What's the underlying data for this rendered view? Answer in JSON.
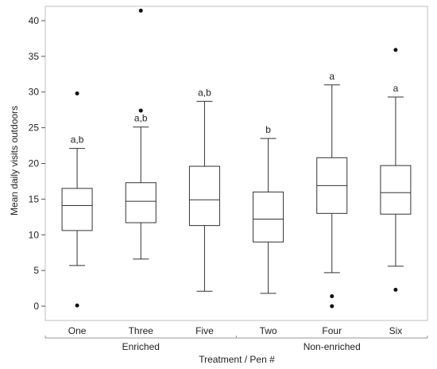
{
  "chart_data": {
    "type": "boxplot",
    "ylabel": "Mean daily visits outdoors",
    "xlabel": "Treatment / Pen #",
    "ylim": [
      -2,
      42
    ],
    "yticks": [
      0,
      5,
      10,
      15,
      20,
      25,
      30,
      35,
      40
    ],
    "grid": false,
    "categories": [
      "One",
      "Three",
      "Five",
      "Two",
      "Four",
      "Six"
    ],
    "groups": [
      {
        "label": "Enriched",
        "categories": [
          "One",
          "Three",
          "Five"
        ]
      },
      {
        "label": "Non-enriched",
        "categories": [
          "Two",
          "Four",
          "Six"
        ]
      }
    ],
    "boxes": [
      {
        "category": "One",
        "min": 5.7,
        "q1": 10.6,
        "median": 14.1,
        "q3": 16.5,
        "max": 22.1,
        "outliers": [
          29.8,
          0.1
        ],
        "letters": "a,b"
      },
      {
        "category": "Three",
        "min": 6.6,
        "q1": 11.7,
        "median": 14.7,
        "q3": 17.3,
        "max": 25.1,
        "outliers": [
          27.4,
          41.4
        ],
        "letters": "a,b"
      },
      {
        "category": "Five",
        "min": 2.1,
        "q1": 11.3,
        "median": 14.9,
        "q3": 19.6,
        "max": 28.7,
        "outliers": [],
        "letters": "a,b"
      },
      {
        "category": "Two",
        "min": 1.8,
        "q1": 9.0,
        "median": 12.2,
        "q3": 16.0,
        "max": 23.5,
        "outliers": [],
        "letters": "b"
      },
      {
        "category": "Four",
        "min": 4.7,
        "q1": 13.0,
        "median": 16.9,
        "q3": 20.8,
        "max": 31.0,
        "outliers": [
          1.4,
          0.0
        ],
        "letters": "a"
      },
      {
        "category": "Six",
        "min": 5.6,
        "q1": 12.9,
        "median": 15.9,
        "q3": 19.7,
        "max": 29.3,
        "outliers": [
          35.9,
          2.3
        ],
        "letters": "a"
      }
    ]
  }
}
